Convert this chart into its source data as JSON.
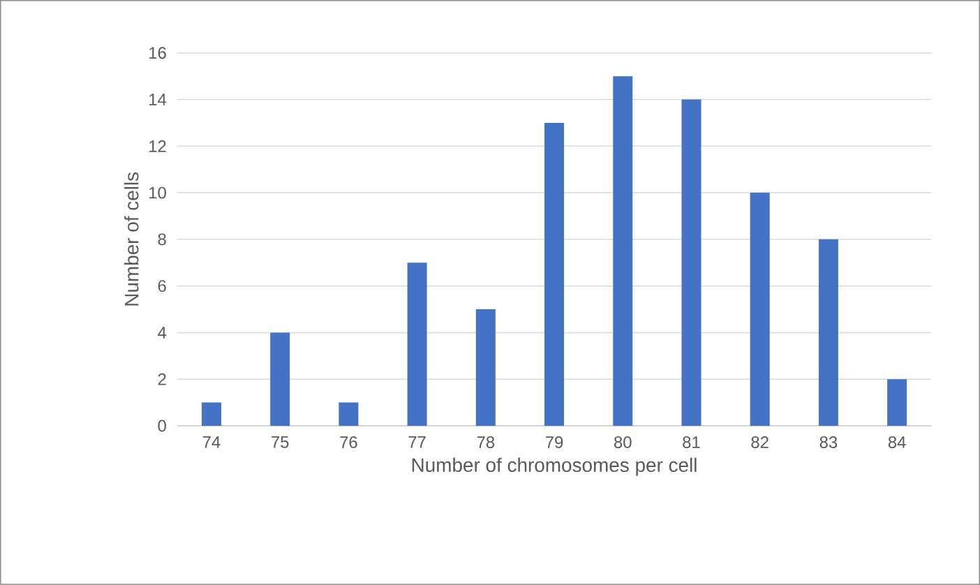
{
  "chart_data": {
    "type": "bar",
    "xlabel": "Number of chromosomes per cell",
    "ylabel": "Number of cells",
    "categories": [
      "74",
      "75",
      "76",
      "77",
      "78",
      "79",
      "80",
      "81",
      "82",
      "83",
      "84"
    ],
    "values": [
      1,
      4,
      1,
      7,
      5,
      13,
      15,
      14,
      10,
      8,
      2
    ],
    "color": "#4472c4",
    "ylim": [
      0,
      16
    ],
    "yticks": [
      0,
      2,
      4,
      6,
      8,
      10,
      12,
      14,
      16
    ],
    "grid": "y"
  }
}
